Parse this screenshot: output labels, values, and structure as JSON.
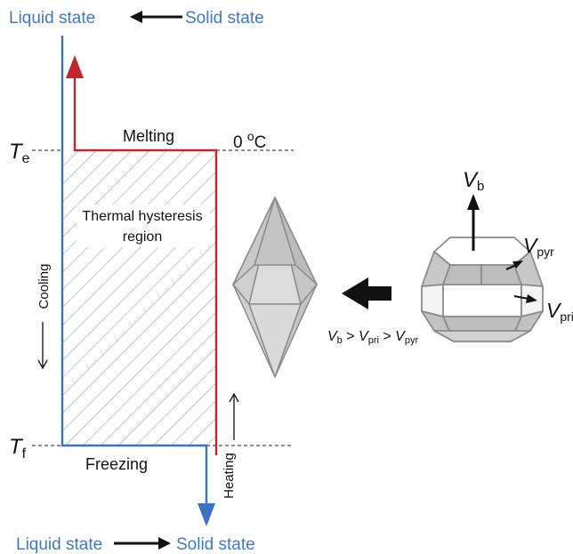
{
  "top_label": {
    "from": "Liquid state",
    "to": "Solid state"
  },
  "bottom_label": {
    "from": "Liquid state",
    "to": "Solid state"
  },
  "te": {
    "main": "T",
    "sub": "e"
  },
  "tf": {
    "main": "T",
    "sub": "f"
  },
  "melting": "Melting",
  "zero_c": {
    "value": "0 ",
    "unit_o": "o",
    "unit_c": "C"
  },
  "hysteresis": {
    "line1": "Thermal hysteresis",
    "line2": "region"
  },
  "cooling": "Cooling",
  "heating": "Heating",
  "freezing": "Freezing",
  "velocities": {
    "vb": {
      "main": "V",
      "sub": "b"
    },
    "vpyr": {
      "main": "V",
      "sub": "pyr"
    },
    "vpri": {
      "main": "V",
      "sub": "pri"
    }
  },
  "inequality": {
    "a": "V",
    "a_sub": "b",
    "gt1": " > ",
    "b": "V",
    "b_sub": "pri",
    "gt2": " > ",
    "c": "V",
    "c_sub": "pyr"
  },
  "colors": {
    "blue": "#3d72c0",
    "red": "#c1272d",
    "hatch": "#6b93cc",
    "label_blue": "#3f79c7",
    "crystal_fill": "#d4d4d4",
    "crystal_dark": "#b9b9b9",
    "crystal_stroke": "#8c8c8c"
  }
}
